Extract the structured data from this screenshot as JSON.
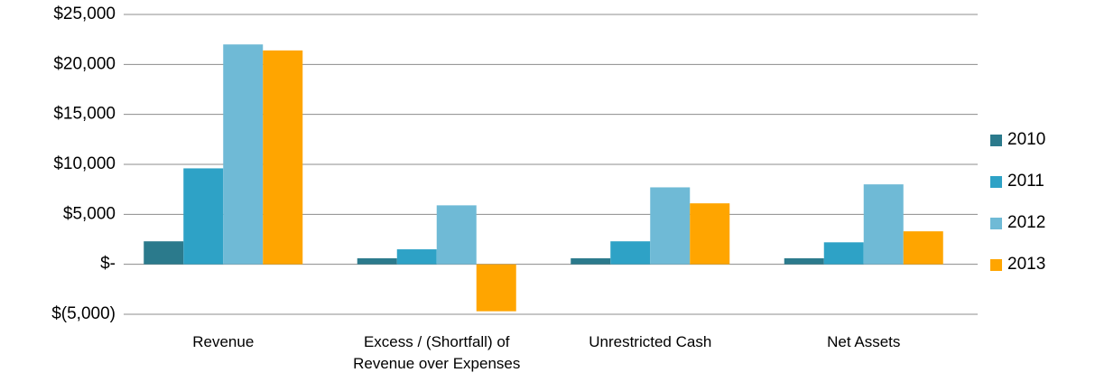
{
  "chart_data": {
    "type": "bar",
    "categories": [
      "Revenue",
      "Excess / (Shortfall) of Revenue over Expenses",
      "Unrestricted Cash",
      "Net Assets"
    ],
    "series": [
      {
        "name": "2010",
        "color": "#2b7a8c",
        "values": [
          2300,
          600,
          600,
          600
        ]
      },
      {
        "name": "2011",
        "color": "#2ea2c6",
        "values": [
          9600,
          1500,
          2300,
          2200
        ]
      },
      {
        "name": "2012",
        "color": "#6fbad6",
        "values": [
          22000,
          5900,
          7700,
          8000
        ]
      },
      {
        "name": "2013",
        "color": "#ffa500",
        "values": [
          21400,
          -4700,
          6100,
          3300
        ]
      }
    ],
    "ylim": [
      -5000,
      25000
    ],
    "yticks": [
      {
        "value": -5000,
        "label": "$(5,000)"
      },
      {
        "value": 0,
        "label": "$-"
      },
      {
        "value": 5000,
        "label": "$5,000"
      },
      {
        "value": 10000,
        "label": "$10,000"
      },
      {
        "value": 15000,
        "label": "$15,000"
      },
      {
        "value": 20000,
        "label": "$20,000"
      },
      {
        "value": 25000,
        "label": "$25,000"
      }
    ],
    "grid": true,
    "legend": "right"
  }
}
